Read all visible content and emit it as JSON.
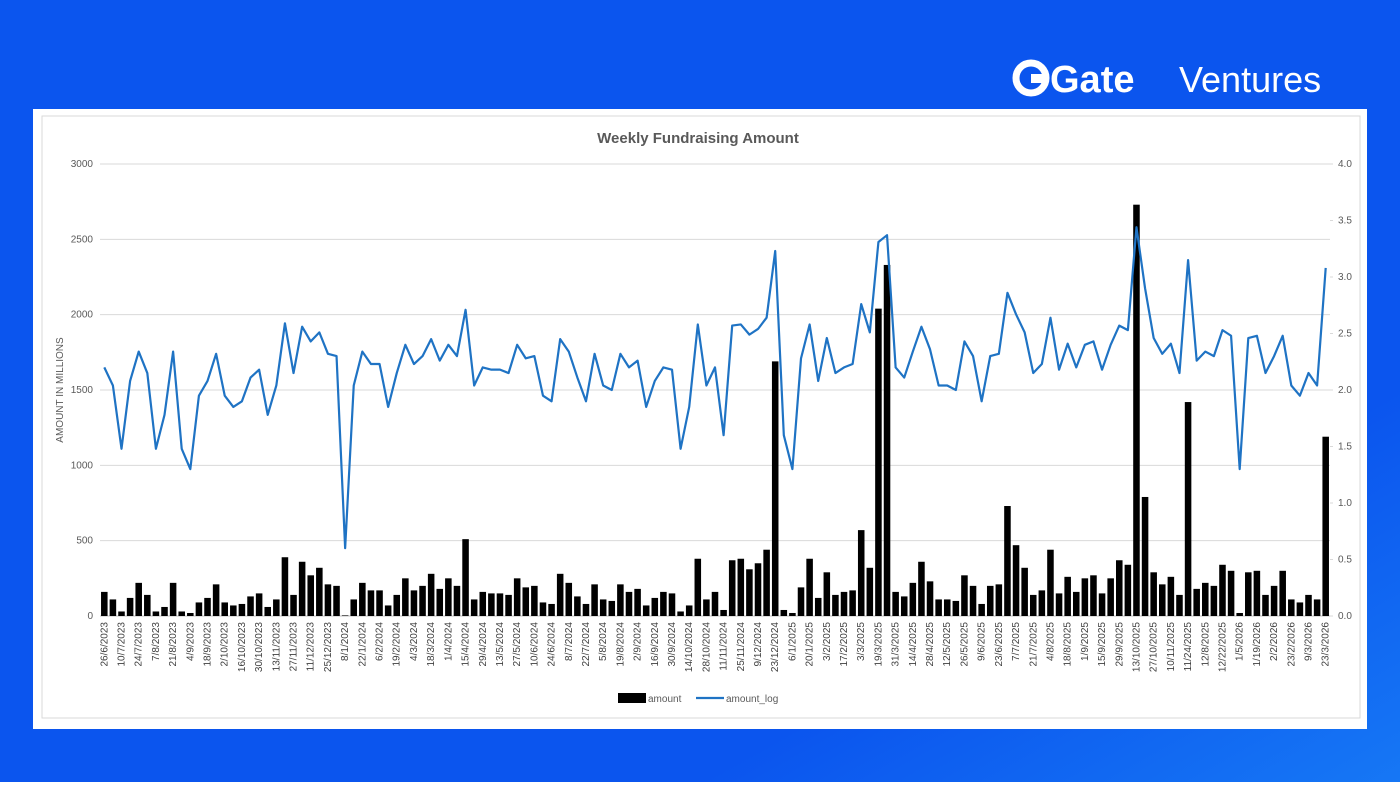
{
  "brand": {
    "name": "Gate",
    "suffix": "Ventures"
  },
  "chart_data": {
    "type": "combo",
    "title": "Weekly Fundraising Amount",
    "ylabel": "AMOUNT IN MILLIONS",
    "categories": [
      "26/6/2023",
      null,
      "10/7/2023",
      null,
      "24/7/2023",
      null,
      "7/8/2023",
      null,
      "21/8/2023",
      null,
      "4/9/2023",
      null,
      "18/9/2023",
      null,
      "2/10/2023",
      null,
      "16/10/2023",
      null,
      "30/10/2023",
      null,
      "13/11/2023",
      null,
      "27/11/2023",
      null,
      "11/12/2023",
      null,
      "25/12/2023",
      null,
      "8/1/2024",
      null,
      "22/1/2024",
      null,
      "6/2/2024",
      null,
      "19/2/2024",
      null,
      "4/3/2024",
      null,
      "18/3/2024",
      null,
      "1/4/2024",
      null,
      "15/4/2024",
      null,
      "29/4/2024",
      null,
      "13/5/2024",
      null,
      "27/5/2024",
      null,
      "10/6/2024",
      null,
      "24/6/2024",
      null,
      "8/7/2024",
      null,
      "22/7/2024",
      null,
      "5/8/2024",
      null,
      "19/8/2024",
      null,
      "2/9/2024",
      null,
      "16/9/2024",
      null,
      "30/9/2024",
      null,
      "14/10/2024",
      null,
      "28/10/2024",
      null,
      "11/11/2024",
      null,
      "25/11/2024",
      null,
      "9/12/2024",
      null,
      "23/12/2024",
      null,
      "6/1/2025",
      null,
      "20/1/2025",
      null,
      "3/2/2025",
      null,
      "17/2/2025",
      null,
      "3/3/2025",
      null,
      "19/3/2025",
      null,
      "31/3/2025",
      null,
      "14/4/2025",
      null,
      "28/4/2025",
      null,
      "12/5/2025",
      null,
      "26/5/2025",
      null,
      "9/6/2025",
      null,
      "23/6/2025",
      null,
      "7/7/2025",
      null,
      "21/7/2025",
      null,
      "4/8/2025",
      null,
      "18/8/2025",
      null,
      "1/9/2025",
      null,
      "15/9/2025",
      null,
      "29/9/2025",
      null,
      "13/10/2025",
      null,
      "27/10/2025",
      null,
      "10/11/2025",
      null,
      "11/24/2025",
      null,
      "12/8/2025",
      null,
      "12/22/2025",
      null,
      "1/5/2026",
      null,
      "1/19/2026",
      null,
      "2/2/2026",
      null,
      "23/2/2026",
      null,
      "9/3/2026",
      null,
      "23/3/2026"
    ],
    "series": [
      {
        "name": "amount",
        "type": "bar",
        "color": "#000000",
        "values": [
          160,
          110,
          30,
          120,
          220,
          140,
          30,
          60,
          220,
          30,
          20,
          90,
          120,
          210,
          90,
          70,
          80,
          130,
          150,
          60,
          110,
          390,
          140,
          360,
          270,
          320,
          210,
          200,
          4,
          110,
          220,
          170,
          170,
          70,
          140,
          250,
          170,
          200,
          280,
          180,
          250,
          200,
          510,
          110,
          160,
          150,
          150,
          140,
          250,
          190,
          200,
          90,
          80,
          280,
          220,
          130,
          80,
          210,
          110,
          100,
          210,
          160,
          180,
          70,
          120,
          160,
          150,
          30,
          70,
          380,
          110,
          160,
          40,
          370,
          380,
          310,
          350,
          440,
          1690,
          40,
          20,
          190,
          380,
          120,
          290,
          140,
          160,
          170,
          570,
          320,
          2040,
          2330,
          160,
          130,
          220,
          360,
          230,
          110,
          110,
          100,
          270,
          200,
          80,
          200,
          210,
          730,
          470,
          320,
          140,
          170,
          440,
          150,
          260,
          160,
          250,
          270,
          150,
          250,
          370,
          340,
          2730,
          790,
          290,
          210,
          260,
          140,
          1420,
          180,
          220,
          200,
          340,
          300,
          20,
          290,
          300,
          140,
          200,
          300,
          110,
          90,
          140,
          110,
          1190
        ]
      },
      {
        "name": "amount_log",
        "type": "line",
        "axis": "y2",
        "color": "#1f73c4",
        "values": [
          2.2,
          2.04,
          1.48,
          2.08,
          2.34,
          2.15,
          1.48,
          1.78,
          2.34,
          1.48,
          1.3,
          1.95,
          2.08,
          2.32,
          1.95,
          1.85,
          1.9,
          2.11,
          2.18,
          1.78,
          2.04,
          2.59,
          2.15,
          2.56,
          2.43,
          2.51,
          2.32,
          2.3,
          0.6,
          2.04,
          2.34,
          2.23,
          2.23,
          1.85,
          2.15,
          2.4,
          2.23,
          2.3,
          2.45,
          2.26,
          2.4,
          2.3,
          2.71,
          2.04,
          2.2,
          2.18,
          2.18,
          2.15,
          2.4,
          2.28,
          2.3,
          1.95,
          1.9,
          2.45,
          2.34,
          2.11,
          1.9,
          2.32,
          2.04,
          2,
          2.32,
          2.2,
          2.26,
          1.85,
          2.08,
          2.2,
          2.18,
          1.48,
          1.85,
          2.58,
          2.04,
          2.2,
          1.6,
          2.57,
          2.58,
          2.49,
          2.54,
          2.64,
          3.23,
          1.6,
          1.3,
          2.28,
          2.58,
          2.08,
          2.46,
          2.15,
          2.2,
          2.23,
          2.76,
          2.51,
          3.31,
          3.37,
          2.2,
          2.11,
          2.34,
          2.56,
          2.36,
          2.04,
          2.04,
          2,
          2.43,
          2.3,
          1.9,
          2.3,
          2.32,
          2.86,
          2.67,
          2.51,
          2.15,
          2.23,
          2.64,
          2.18,
          2.41,
          2.2,
          2.4,
          2.43,
          2.18,
          2.4,
          2.57,
          2.53,
          3.44,
          2.9,
          2.46,
          2.32,
          2.41,
          2.15,
          3.15,
          2.26,
          2.34,
          2.3,
          2.53,
          2.48,
          1.3,
          2.46,
          2.48,
          2.15,
          2.3,
          2.48,
          2.04,
          1.95,
          2.15,
          2.04,
          3.08
        ]
      }
    ],
    "ylim": [
      0,
      3000
    ],
    "yticks": [
      0,
      500,
      1000,
      1500,
      2000,
      2500,
      3000
    ],
    "y2lim": [
      0,
      4
    ],
    "y2ticks": [
      {
        "value": 0,
        "label": "0.0"
      },
      0.5,
      {
        "value": 1,
        "label": "1.0"
      },
      1.5,
      {
        "value": 2,
        "label": "2.0"
      },
      2.5,
      {
        "value": 3,
        "label": "3.0"
      },
      3.5,
      {
        "value": 4,
        "label": "4.0"
      }
    ],
    "grid": true,
    "legend": "bottom"
  }
}
